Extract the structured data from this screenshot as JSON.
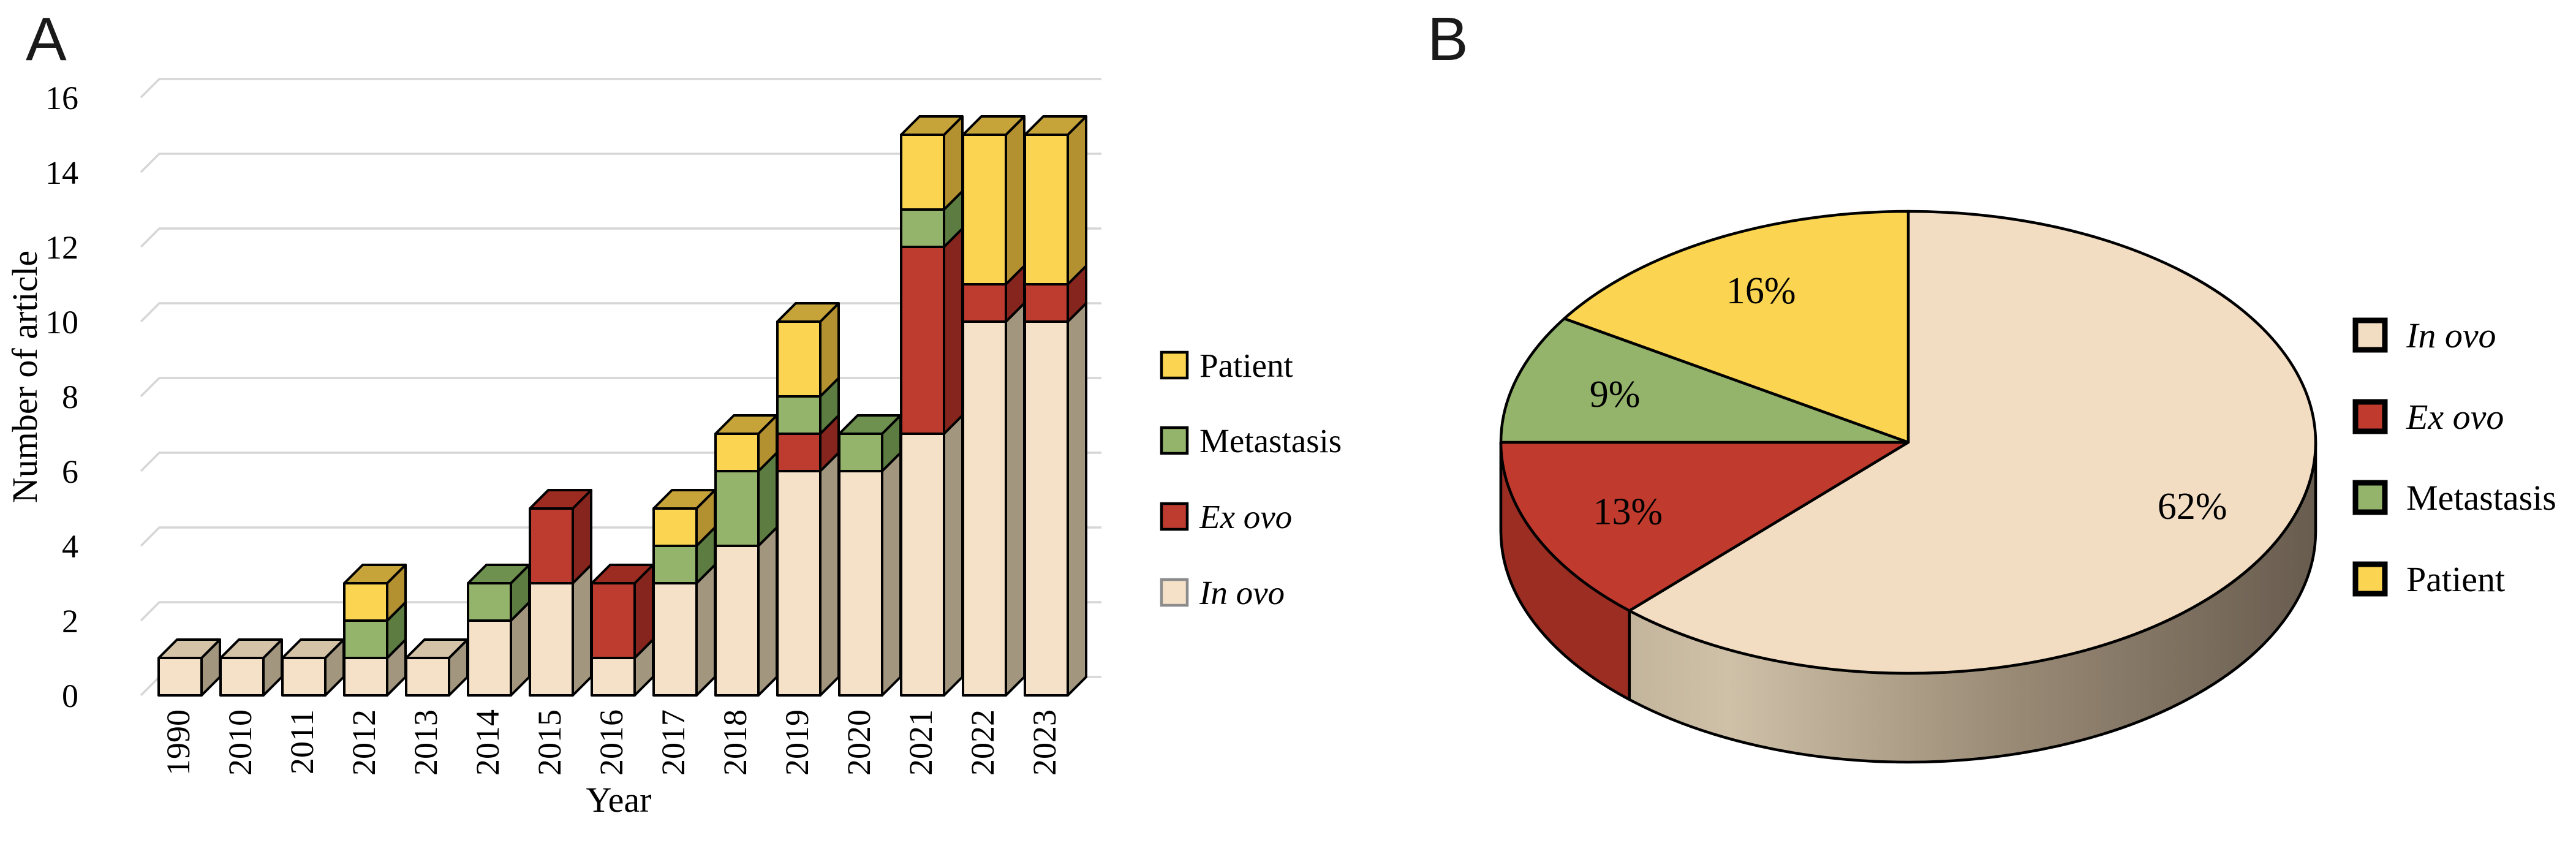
{
  "panels": {
    "a": "A",
    "b": "B"
  },
  "chart_data": [
    {
      "type": "bar",
      "panel": "A",
      "stacked": true,
      "three_d": true,
      "title": "",
      "xlabel": "Year",
      "ylabel": "Number of article",
      "ylim": [
        0,
        16
      ],
      "ytick_step": 2,
      "yticks": [
        "0",
        "2",
        "4",
        "6",
        "8",
        "10",
        "12",
        "14",
        "16"
      ],
      "grid": true,
      "legend_position": "right",
      "categories": [
        "1990",
        "2010",
        "2011",
        "2012",
        "2013",
        "2014",
        "2015",
        "2016",
        "2017",
        "2018",
        "2019",
        "2020",
        "2021",
        "2022",
        "2023"
      ],
      "series": [
        {
          "name": "In ovo",
          "italic": true,
          "values": [
            1,
            1,
            1,
            1,
            1,
            2,
            3,
            1,
            3,
            4,
            6,
            6,
            7,
            10,
            10
          ],
          "color": "#F5E1C8",
          "side_color": "#A3967F",
          "top_color": "#D5C3A8",
          "legend_border": "#8C8C8C"
        },
        {
          "name": "Ex ovo",
          "italic": true,
          "values": [
            0,
            0,
            0,
            0,
            0,
            0,
            2,
            2,
            0,
            0,
            1,
            0,
            5,
            1,
            1
          ],
          "color": "#BE3B2F",
          "side_color": "#86251D",
          "top_color": "#9C2C21",
          "legend_border": "#000000"
        },
        {
          "name": "Metastasis",
          "italic": false,
          "values": [
            0,
            0,
            0,
            1,
            0,
            1,
            0,
            0,
            1,
            2,
            1,
            1,
            1,
            0,
            0
          ],
          "color": "#94B36B",
          "side_color": "#5C7C41",
          "top_color": "#6E9150",
          "legend_border": "#000000"
        },
        {
          "name": "Patient",
          "italic": false,
          "values": [
            0,
            0,
            0,
            1,
            0,
            0,
            0,
            0,
            1,
            1,
            2,
            0,
            2,
            4,
            4
          ],
          "color": "#FBD551",
          "side_color": "#B49130",
          "top_color": "#C7A43A",
          "legend_border": "#000000"
        }
      ],
      "totals": [
        1,
        1,
        1,
        3,
        1,
        3,
        5,
        3,
        5,
        7,
        10,
        7,
        15,
        15,
        15
      ],
      "legend_order": [
        "Patient",
        "Metastasis",
        "Ex ovo",
        "In ovo"
      ]
    },
    {
      "type": "pie",
      "panel": "B",
      "three_d": true,
      "start_angle": "12 o'clock",
      "direction": "clockwise",
      "slices": [
        {
          "name": "In ovo",
          "italic": true,
          "value": 62,
          "label": "62%",
          "color": "#F2DCC2"
        },
        {
          "name": "Ex ovo",
          "italic": true,
          "value": 13,
          "label": "13%",
          "color": "#C13A2E",
          "side_color": "#9C2D23"
        },
        {
          "name": "Metastasis",
          "italic": false,
          "value": 9,
          "label": "9%",
          "color": "#94B36B"
        },
        {
          "name": "Patient",
          "italic": false,
          "value": 16,
          "label": "16%",
          "color": "#FBD551"
        }
      ],
      "legend_order": [
        "In ovo",
        "Ex ovo",
        "Metastasis",
        "Patient"
      ]
    }
  ],
  "colors": {
    "grid": "#D6D6D6",
    "outline": "#000000",
    "background": "#FFFFFF",
    "pie_side_gradient": [
      "#B5A58D",
      "#CFC0A8",
      "#9A8B76",
      "#685C4F"
    ]
  }
}
